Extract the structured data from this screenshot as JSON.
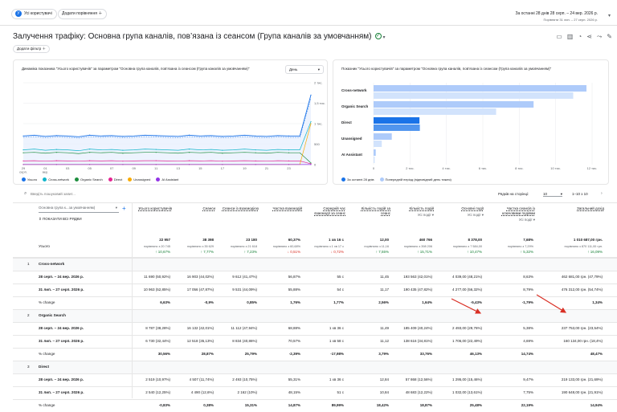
{
  "topbar": {
    "segment_chip": "Усі користувачі",
    "add_comparison": "Додати порівняння",
    "date_range": "За останні 28 днів  28 серп. – 24 вер. 2026 р.",
    "compare_range": "Порівняти 31 лип. – 27 серп. 2026 р."
  },
  "report": {
    "title": "Залучення трафіку: Основна група каналів, пов’язана із сеансом (Група каналів за умовчанням)",
    "add_filter": "Додати фільтр"
  },
  "line_card": {
    "title": "Динаміка показника \"Усього користувачів\" за параметром \"Основна група каналів, пов’язана із сеансом (Група каналів за умовчанням)\"",
    "granularity": "День",
    "y_ticks": [
      "2 тис.",
      "1,5 тис.",
      "1 тис.",
      "500",
      "0"
    ],
    "x_ticks": [
      "29\nсерп.",
      "01\nвер.",
      "03",
      "05",
      "07",
      "09",
      "11",
      "13",
      "15",
      "17",
      "19",
      "21",
      "23"
    ],
    "legend": [
      "Усього",
      "Cross-network",
      "Organic Search",
      "Direct",
      "Unassigned",
      "AI Assistant"
    ]
  },
  "bar_card": {
    "title": "Показник \"Усього користувачів\" за параметром \"Основна група каналів, пов’язана із сеансом (Група каналів за умовчанням)\"",
    "categories": [
      "Cross-network",
      "Organic Search",
      "Direct",
      "Unassigned",
      "AI Assistant"
    ],
    "x_ticks": [
      "0",
      "2 тис.",
      "4 тис.",
      "6 тис.",
      "8 тис.",
      "10 тис.",
      "12 тис."
    ],
    "legend_current": "За останні 28 днів",
    "legend_prev": "Попередній період (відповідний день тижня)"
  },
  "chart_data": [
    {
      "type": "line",
      "title": "",
      "x": [
        "29",
        "30",
        "31",
        "01",
        "02",
        "03",
        "04",
        "05",
        "06",
        "07",
        "08",
        "09",
        "10",
        "11",
        "12",
        "13",
        "14",
        "15",
        "16",
        "17",
        "18",
        "19",
        "20",
        "21",
        "22",
        "23",
        "24"
      ],
      "series": [
        {
          "name": "Усього",
          "values": [
            700,
            720,
            690,
            710,
            700,
            680,
            720,
            700,
            710,
            690,
            700,
            720,
            710,
            700,
            690,
            720,
            700,
            710,
            690,
            700,
            720,
            700,
            690,
            710,
            700,
            700,
            1700
          ]
        },
        {
          "name": "Cross-network",
          "values": [
            360,
            380,
            350,
            370,
            360,
            340,
            380,
            360,
            370,
            350,
            360,
            380,
            370,
            360,
            350,
            380,
            360,
            370,
            350,
            360,
            380,
            360,
            350,
            370,
            360,
            360,
            1050
          ]
        },
        {
          "name": "Organic Search",
          "values": [
            290,
            300,
            280,
            300,
            290,
            270,
            300,
            290,
            300,
            280,
            290,
            300,
            300,
            290,
            280,
            300,
            290,
            300,
            280,
            290,
            300,
            290,
            280,
            300,
            290,
            290,
            40
          ]
        },
        {
          "name": "Direct",
          "values": [
            90,
            95,
            85,
            95,
            90,
            85,
            95,
            90,
            95,
            85,
            90,
            95,
            95,
            90,
            85,
            95,
            90,
            95,
            85,
            90,
            95,
            90,
            85,
            95,
            90,
            90,
            20
          ]
        },
        {
          "name": "Unassigned",
          "values": [
            5,
            5,
            5,
            5,
            5,
            5,
            5,
            5,
            5,
            5,
            5,
            5,
            5,
            5,
            5,
            5,
            5,
            5,
            5,
            5,
            5,
            5,
            5,
            5,
            5,
            5,
            1000
          ]
        },
        {
          "name": "AI Assistant",
          "values": [
            2,
            2,
            2,
            2,
            2,
            2,
            2,
            2,
            2,
            2,
            2,
            2,
            2,
            2,
            2,
            2,
            2,
            2,
            2,
            2,
            2,
            2,
            2,
            2,
            2,
            2,
            2
          ]
        }
      ],
      "ylim": [
        0,
        2000
      ]
    },
    {
      "type": "bar",
      "title": "",
      "categories": [
        "Cross-network",
        "Organic Search",
        "Direct",
        "Unassigned",
        "AI Assistant"
      ],
      "series": [
        {
          "name": "За останні 28 днів",
          "values": [
            11690,
            8787,
            2519,
            1000,
            120
          ]
        },
        {
          "name": "Попередній період (відповідний день тижня)",
          "values": [
            10963,
            6730,
            2540,
            450,
            60
          ]
        }
      ],
      "xlim": [
        0,
        12000
      ]
    }
  ],
  "table": {
    "search_placeholder": "Введіть пошуковий запит...",
    "rows_per_page_label": "Рядків на сторінці:",
    "rows_per_page": "10",
    "page_range": "1–10 з 10",
    "dim_select": "Основна група к...за умовчанням)",
    "show_all": "ПОКАЗАТИ ВСІ РЯДКИ",
    "headers": [
      "Усього користувачів",
      "Сеанси",
      "Сеанси із взаємодією",
      "Частка взаємодій",
      "Середній час взаємодії за сеанс",
      "Кількість подій за сеанс",
      "Кількість подій",
      "Основні події",
      "Частка сеансів із ключовими подіями",
      "Загальний дохід"
    ],
    "header_dd": [
      "",
      "",
      "",
      "",
      "",
      "",
      "Усі події",
      "Усі події",
      "Усі події",
      ""
    ],
    "total_label": "Усього",
    "totals": [
      [
        "22 957",
        "38 398",
        "23 180",
        "60,37%",
        "1 хв 16 с",
        "12,00",
        "460 766",
        "8 378,00",
        "7,68%",
        "1 010 687,00 грн."
      ],
      [
        "порівняно з 20 745",
        "порівняно з 35 629",
        "порівняно з 21 618",
        "порівняно з 60,68%",
        "порівняно з 1 хв 17 с",
        "порівняно з 11,16",
        "порівняно з 398 206",
        "порівняно з 7 584,00",
        "порівняно з 7,29%",
        "порівняно з 870 111,00 грн."
      ],
      [
        "↑ 10,67%",
        "↑ 7,77%",
        "↑ 7,23%",
        "↓ 0,51%",
        "↓ 0,72%",
        "↑ 7,55%",
        "↑ 15,71%",
        "↑ 10,47%",
        "↑ 5,32%",
        "↑ 16,09%"
      ]
    ],
    "groups": [
      {
        "num": "1",
        "name": "Cross-network",
        "rows": [
          {
            "label": "28 серп. – 24 вер. 2026 р.",
            "v": [
              "11 690 (50,92%)",
              "16 903 (44,02%)",
              "9 612 (41,47%)",
              "56,87%",
              "55 с",
              "11,45",
              "193 563 (42,01%)",
              "4 039,00 (48,21%)",
              "8,63%",
              "462 681,00 грн. (47,79%)"
            ]
          },
          {
            "label": "31 лип. – 27 серп. 2026 р.",
            "v": [
              "10 963 (52,85%)",
              "17 056 (47,87%)",
              "9 531 (44,09%)",
              "55,88%",
              "54 с",
              "11,17",
              "190 435 (47,82%)",
              "4 277,00 (56,32%)",
              "8,79%",
              "476 312,00 грн. (54,74%)"
            ]
          },
          {
            "label": "% change",
            "v": [
              "6,63%",
              "-0,9%",
              "0,85%",
              "1,76%",
              "1,77%",
              "2,56%",
              "1,64%",
              "-5,43%",
              "-1,79%",
              "1,34%"
            ]
          }
        ]
      },
      {
        "num": "2",
        "name": "Organic Search",
        "rows": [
          {
            "label": "28 серп. – 24 вер. 2026 р.",
            "v": [
              "8 787 (38,28%)",
              "16 132 (42,01%)",
              "11 112 (47,94%)",
              "68,88%",
              "1 хв 36 с",
              "11,49",
              "185 409 (40,24%)",
              "2 493,00 (29,76%)",
              "5,38%",
              "237 753,00 грн. (23,54%)"
            ]
          },
          {
            "label": "31 лип. – 27 серп. 2026 р.",
            "v": [
              "6 730 (32,44%)",
              "12 518 (35,13%)",
              "8 834 (40,86%)",
              "70,57%",
              "1 хв 58 с",
              "11,12",
              "138 616 (34,81%)",
              "1 706,00 (22,49%)",
              "4,69%",
              "160 134,00 грн. (18,4%)"
            ]
          },
          {
            "label": "% change",
            "v": [
              "30,56%",
              "28,87%",
              "25,79%",
              "-2,39%",
              "-17,98%",
              "3,79%",
              "33,76%",
              "46,13%",
              "14,74%",
              "48,47%"
            ]
          }
        ]
      },
      {
        "num": "3",
        "name": "Direct",
        "rows": [
          {
            "label": "28 серп. – 24 вер. 2026 р.",
            "v": [
              "2 519 (10,97%)",
              "4 507 (11,74%)",
              "2 493 (10,75%)",
              "55,31%",
              "1 хв 36 с",
              "12,84",
              "57 868 (12,56%)",
              "1 295,00 (15,46%)",
              "9,47%",
              "219 133,00 грн. (21,69%)"
            ]
          },
          {
            "label": "31 лип. – 27 серп. 2026 р.",
            "v": [
              "2 540 (12,25%)",
              "4 490 (12,6%)",
              "2 162 (10%)",
              "48,15%",
              "51 с",
              "10,84",
              "48 683 (12,22%)",
              "1 032,00 (13,61%)",
              "7,75%",
              "190 648,00 грн. (21,91%)"
            ]
          },
          {
            "label": "% change",
            "v": [
              "-0,83%",
              "0,38%",
              "15,31%",
              "14,87%",
              "89,99%",
              "18,42%",
              "18,87%",
              "25,48%",
              "22,19%",
              "14,94%"
            ]
          }
        ]
      }
    ]
  }
}
